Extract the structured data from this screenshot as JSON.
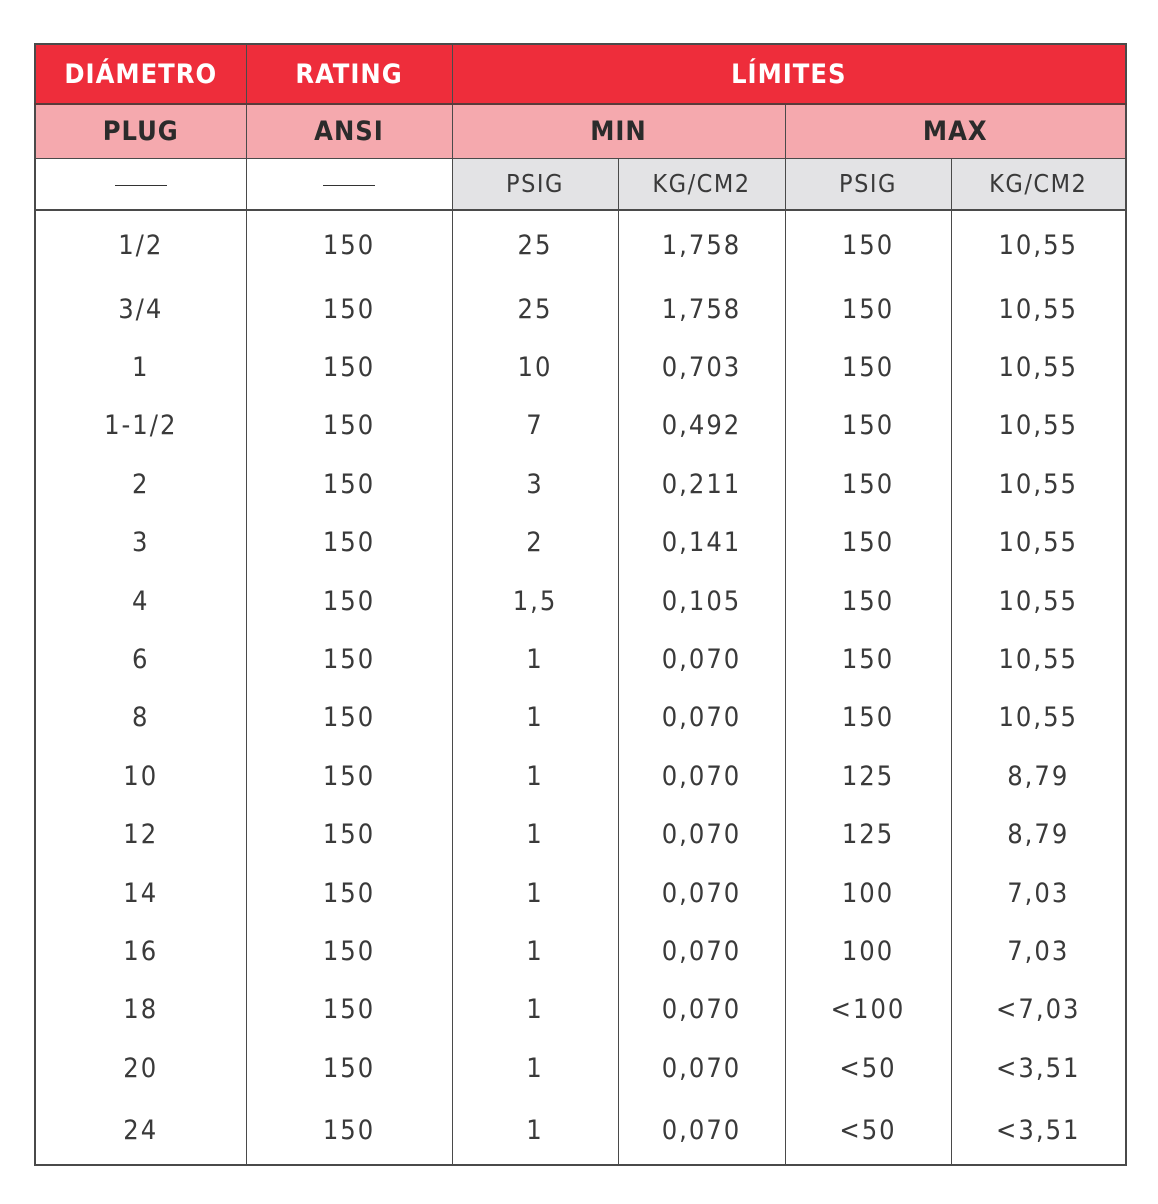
{
  "header": {
    "col_diametro": "DIÁMETRO",
    "col_rating": "RATING",
    "col_limites": "LÍMITES",
    "sub_plug": "PLUG",
    "sub_ansi": "ANSI",
    "sub_min": "MIN",
    "sub_max": "MAX",
    "unit_min_psig": "PSIG",
    "unit_min_kg": "KG/CM2",
    "unit_max_psig": "PSIG",
    "unit_max_kg": "KG/CM2"
  },
  "colors": {
    "header_red": "#ee2d3b",
    "header_pink": "#f5a9ae",
    "unit_grey": "#e3e3e5"
  },
  "rows": [
    {
      "diametro": "1/2",
      "rating": "150",
      "min_psig": "25",
      "min_kg": "1,758",
      "max_psig": "150",
      "max_kg": "10,55"
    },
    {
      "diametro": "3/4",
      "rating": "150",
      "min_psig": "25",
      "min_kg": "1,758",
      "max_psig": "150",
      "max_kg": "10,55"
    },
    {
      "diametro": "1",
      "rating": "150",
      "min_psig": "10",
      "min_kg": "0,703",
      "max_psig": "150",
      "max_kg": "10,55"
    },
    {
      "diametro": "1-1/2",
      "rating": "150",
      "min_psig": "7",
      "min_kg": "0,492",
      "max_psig": "150",
      "max_kg": "10,55"
    },
    {
      "diametro": "2",
      "rating": "150",
      "min_psig": "3",
      "min_kg": "0,211",
      "max_psig": "150",
      "max_kg": "10,55"
    },
    {
      "diametro": "3",
      "rating": "150",
      "min_psig": "2",
      "min_kg": "0,141",
      "max_psig": "150",
      "max_kg": "10,55"
    },
    {
      "diametro": "4",
      "rating": "150",
      "min_psig": "1,5",
      "min_kg": "0,105",
      "max_psig": "150",
      "max_kg": "10,55"
    },
    {
      "diametro": "6",
      "rating": "150",
      "min_psig": "1",
      "min_kg": "0,070",
      "max_psig": "150",
      "max_kg": "10,55"
    },
    {
      "diametro": "8",
      "rating": "150",
      "min_psig": "1",
      "min_kg": "0,070",
      "max_psig": "150",
      "max_kg": "10,55"
    },
    {
      "diametro": "10",
      "rating": "150",
      "min_psig": "1",
      "min_kg": "0,070",
      "max_psig": "125",
      "max_kg": "8,79"
    },
    {
      "diametro": "12",
      "rating": "150",
      "min_psig": "1",
      "min_kg": "0,070",
      "max_psig": "125",
      "max_kg": "8,79"
    },
    {
      "diametro": "14",
      "rating": "150",
      "min_psig": "1",
      "min_kg": "0,070",
      "max_psig": "100",
      "max_kg": "7,03"
    },
    {
      "diametro": "16",
      "rating": "150",
      "min_psig": "1",
      "min_kg": "0,070",
      "max_psig": "100",
      "max_kg": "7,03"
    },
    {
      "diametro": "18",
      "rating": "150",
      "min_psig": "1",
      "min_kg": "0,070",
      "max_psig": "<100",
      "max_kg": "<7,03"
    },
    {
      "diametro": "20",
      "rating": "150",
      "min_psig": "1",
      "min_kg": "0,070",
      "max_psig": "<50",
      "max_kg": "<3,51"
    },
    {
      "diametro": "24",
      "rating": "150",
      "min_psig": "1",
      "min_kg": "0,070",
      "max_psig": "<50",
      "max_kg": "<3,51"
    }
  ]
}
